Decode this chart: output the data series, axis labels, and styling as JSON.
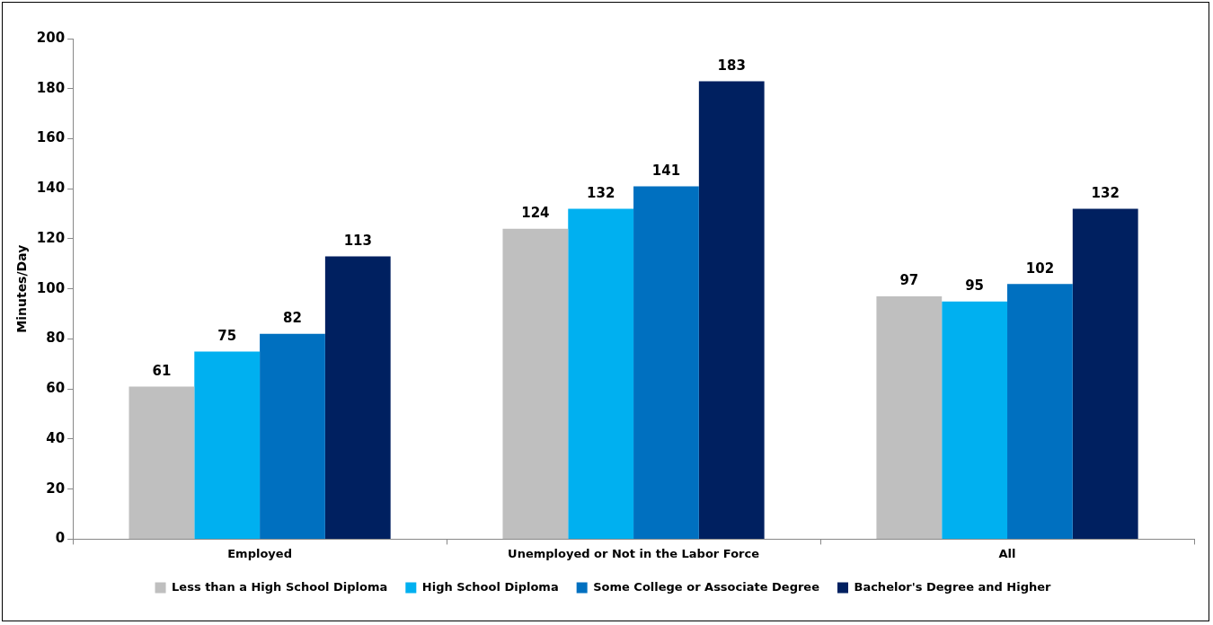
{
  "chart_data": {
    "type": "bar",
    "ylabel": "Minutes/Day",
    "categories": [
      "Employed",
      "Unemployed or Not in the Labor Force",
      "All"
    ],
    "series": [
      {
        "name": "Less than a High School Diploma",
        "color": "#bfbfbf",
        "values": [
          61,
          124,
          97
        ]
      },
      {
        "name": "High School Diploma",
        "color": "#00b0f0",
        "values": [
          75,
          132,
          95
        ]
      },
      {
        "name": "Some College or Associate Degree",
        "color": "#0070c0",
        "values": [
          82,
          141,
          102
        ]
      },
      {
        "name": "Bachelor's Degree and Higher",
        "color": "#002060",
        "values": [
          113,
          183,
          132
        ]
      }
    ],
    "ylim": [
      0,
      200
    ],
    "yticks": [
      0,
      20,
      40,
      60,
      80,
      100,
      120,
      140,
      160,
      180,
      200
    ],
    "grid": false,
    "legend": "bottom",
    "data_labels": true
  }
}
